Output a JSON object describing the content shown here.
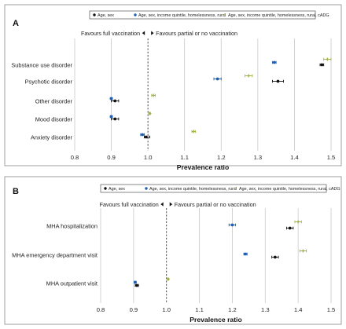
{
  "colors": {
    "age_sex": "#111111",
    "rural": "#1f5fae",
    "cadg": "#a3b04a"
  },
  "chart_data": [
    {
      "panel": "A",
      "type": "scatter",
      "subtype": "forest-plot",
      "xlabel": "Prevalence ratio",
      "xlim": [
        0.8,
        1.5
      ],
      "xticks": [
        "0.8",
        "0.9",
        "1.0",
        "1.1",
        "1.2",
        "1.3",
        "1.4",
        "1.5"
      ],
      "reference_line": 1.0,
      "favours_left": "Favours full vaccination",
      "favours_right": "Favours partial or no vaccination",
      "legend": [
        "Age, sex",
        "Age, sex, income quintile, homelessness, rural",
        "Age, sex, income quintile, homelessness, rural, cADG"
      ],
      "legend_position": "top",
      "categories": [
        "Substance use disorder",
        "Psychotic disorder",
        "Other disorder",
        "Mood disorder",
        "Anxiety disorder"
      ],
      "series": [
        {
          "name": "Age, sex",
          "color": "age_sex",
          "values": [
            1.475,
            1.355,
            0.91,
            0.91,
            0.995
          ],
          "lower": [
            1.47,
            1.34,
            0.9,
            0.9,
            0.99
          ],
          "upper": [
            1.48,
            1.37,
            0.92,
            0.92,
            1.005
          ]
        },
        {
          "name": "Age, sex, income quintile, homelessness, rural",
          "color": "rural",
          "values": [
            1.345,
            1.19,
            0.9,
            0.9,
            0.985
          ],
          "lower": [
            1.34,
            1.18,
            0.897,
            0.897,
            0.98
          ],
          "upper": [
            1.35,
            1.2,
            0.903,
            0.903,
            0.99
          ]
        },
        {
          "name": "Age, sex, income quintile, homelessness, rural, cADG",
          "color": "cadg",
          "values": [
            1.49,
            1.275,
            1.015,
            1.005,
            1.125
          ],
          "lower": [
            1.48,
            1.265,
            1.01,
            1.003,
            1.12
          ],
          "upper": [
            1.5,
            1.285,
            1.02,
            1.007,
            1.13
          ]
        }
      ]
    },
    {
      "panel": "B",
      "type": "scatter",
      "subtype": "forest-plot",
      "xlabel": "Prevalence ratio",
      "xlim": [
        0.8,
        1.5
      ],
      "xticks": [
        "0.8",
        "0.9",
        "1.0",
        "1.1",
        "1.2",
        "1.3",
        "1.4",
        "1.5"
      ],
      "reference_line": 1.0,
      "favours_left": "Favours full vaccination",
      "favours_right": "Favours partial or no vaccination",
      "legend": [
        "Age, sex",
        "Age, sex, income quintile, homelessness, rural",
        "Age, sex, income quintile, homelessness, rural, cADG"
      ],
      "legend_position": "top",
      "categories": [
        "MHA hospitalization",
        "MHA emergency department visit",
        "MHA outpatient visit"
      ],
      "series": [
        {
          "name": "Age, sex",
          "color": "age_sex",
          "values": [
            1.375,
            1.33,
            0.91
          ],
          "lower": [
            1.365,
            1.32,
            0.905
          ],
          "upper": [
            1.385,
            1.34,
            0.915
          ]
        },
        {
          "name": "Age, sex, income quintile, homelessness, rural",
          "color": "rural",
          "values": [
            1.2,
            1.24,
            0.905
          ],
          "lower": [
            1.19,
            1.235,
            0.902
          ],
          "upper": [
            1.21,
            1.245,
            0.908
          ]
        },
        {
          "name": "Age, sex, income quintile, homelessness, rural, cADG",
          "color": "cadg",
          "values": [
            1.4,
            1.415,
            1.005
          ],
          "lower": [
            1.39,
            1.405,
            1.003
          ],
          "upper": [
            1.41,
            1.425,
            1.007
          ]
        }
      ]
    }
  ]
}
